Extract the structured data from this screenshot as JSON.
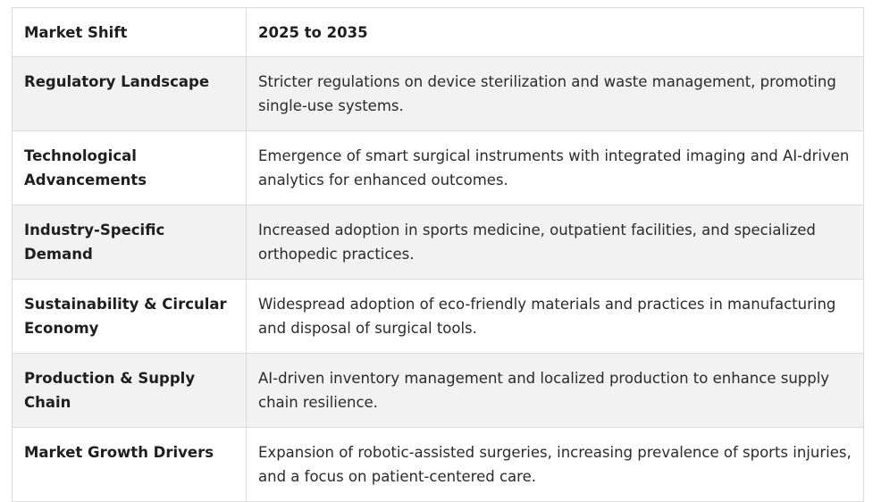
{
  "table": {
    "headers": [
      "Market Shift",
      "2025 to 2035"
    ],
    "rows": [
      {
        "shift": "Regulatory Landscape",
        "outlook": "Stricter regulations on device sterilization and waste management, promoting single-use systems."
      },
      {
        "shift": "Technological Advancements",
        "outlook": "Emergence of smart surgical instruments with integrated imaging and AI-driven analytics for enhanced outcomes."
      },
      {
        "shift": "Industry-Specific Demand",
        "outlook": "Increased adoption in sports medicine, outpatient facilities, and specialized orthopedic practices."
      },
      {
        "shift": "Sustainability & Circular Economy",
        "outlook": "Widespread adoption of eco-friendly materials and practices in manufacturing and disposal of surgical tools."
      },
      {
        "shift": "Production & Supply Chain",
        "outlook": "AI-driven inventory management and localized production to enhance supply chain resilience."
      },
      {
        "shift": "Market Growth Drivers",
        "outlook": "Expansion of robotic-assisted surgeries, increasing prevalence of sports injuries, and a focus on patient-centered care."
      }
    ]
  }
}
